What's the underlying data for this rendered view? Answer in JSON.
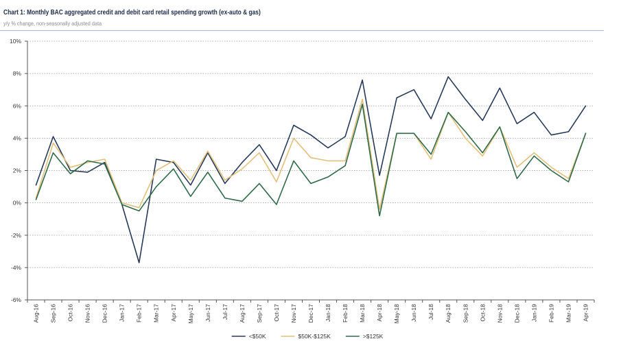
{
  "chart_data": {
    "type": "line",
    "title": "Chart 1: Monthly BAC aggregated credit and debit card retail spending growth (ex-auto & gas)",
    "subtitle": "y/y % change, non-seasonally adjusted data",
    "x": [
      "Aug-16",
      "Sep-16",
      "Oct-16",
      "Nov-16",
      "Dec-16",
      "Jan-17",
      "Feb-17",
      "Mar-17",
      "Apr-17",
      "May-17",
      "Jun-17",
      "Jul-17",
      "Aug-17",
      "Sep-17",
      "Oct-17",
      "Nov-17",
      "Dec-17",
      "Jan-18",
      "Feb-18",
      "Mar-18",
      "Apr-18",
      "May-18",
      "Jun-18",
      "Jul-18",
      "Aug-18",
      "Sep-18",
      "Oct-18",
      "Nov-18",
      "Dec-18",
      "Jan-19",
      "Feb-19",
      "Mar-19",
      "Apr-19"
    ],
    "series": [
      {
        "name": "<$50K",
        "color": "#26395a",
        "values": [
          1.1,
          4.1,
          2.0,
          1.9,
          2.5,
          -0.1,
          -3.7,
          2.7,
          2.5,
          1.1,
          3.1,
          1.2,
          2.5,
          3.6,
          2.0,
          4.8,
          4.2,
          3.4,
          4.1,
          7.6,
          1.7,
          6.5,
          7.0,
          5.2,
          7.8,
          6.4,
          5.1,
          7.1,
          4.9,
          5.6,
          4.2,
          4.4,
          6.0
        ]
      },
      {
        "name": "$50K-$125K",
        "color": "#e2c07a",
        "values": [
          0.3,
          3.7,
          2.2,
          2.5,
          2.7,
          0.0,
          -0.3,
          2.0,
          2.6,
          1.4,
          3.2,
          1.4,
          2.1,
          3.1,
          1.3,
          4.0,
          2.8,
          2.6,
          2.6,
          6.4,
          -0.4,
          4.3,
          4.3,
          2.7,
          5.6,
          4.0,
          2.9,
          4.7,
          2.2,
          3.1,
          2.2,
          1.5,
          4.3
        ]
      },
      {
        "name": ">$125K",
        "color": "#2e6a48",
        "values": [
          0.2,
          3.1,
          1.8,
          2.6,
          2.4,
          -0.1,
          -0.5,
          1.0,
          2.1,
          0.4,
          1.9,
          0.3,
          0.1,
          1.2,
          -0.1,
          2.6,
          1.2,
          1.6,
          2.3,
          6.1,
          -0.8,
          4.3,
          4.3,
          3.0,
          5.6,
          4.4,
          3.1,
          4.7,
          1.5,
          2.9,
          2.0,
          1.3,
          4.3
        ]
      }
    ],
    "ylim": [
      -6,
      10
    ],
    "yticks": [
      10,
      8,
      6,
      4,
      2,
      0,
      -2,
      -4,
      -6
    ],
    "ytick_labels": [
      "10%",
      "8%",
      "6%",
      "4%",
      "2%",
      "0%",
      "-2%",
      "-4%",
      "-6%"
    ],
    "grid": true,
    "legend": "bottom"
  }
}
